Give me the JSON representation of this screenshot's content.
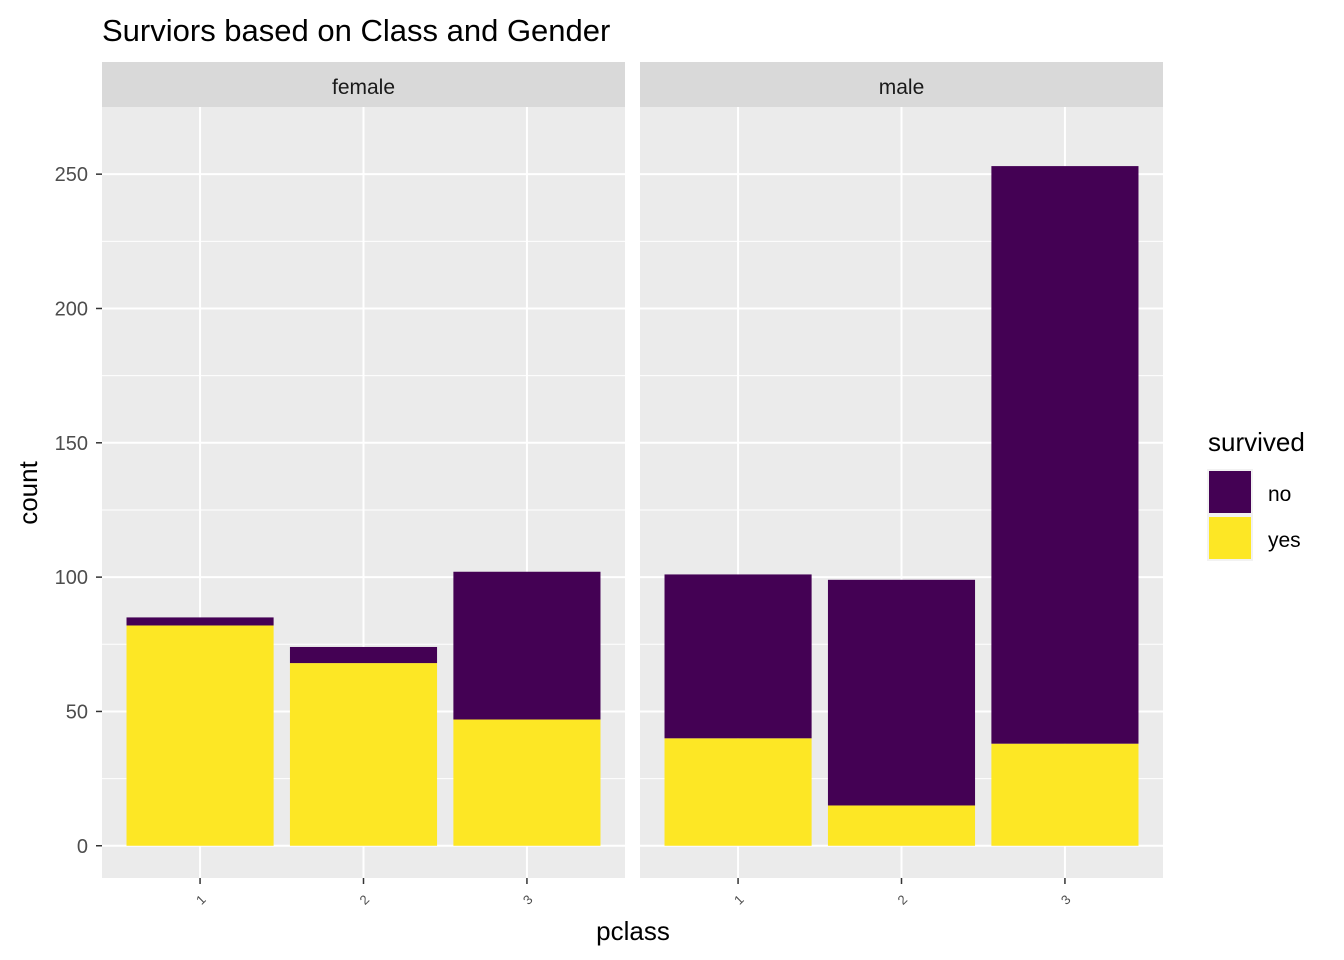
{
  "chart_data": {
    "type": "bar",
    "stacked": true,
    "title": "Surviors based on Class and Gender",
    "xlabel": "pclass",
    "ylabel": "count",
    "ylim": [
      -12,
      275
    ],
    "yticks": [
      0,
      50,
      100,
      150,
      200,
      250
    ],
    "categories": [
      "1",
      "2",
      "3"
    ],
    "facets": [
      {
        "name": "female",
        "series": [
          {
            "name": "no",
            "values": [
              3,
              6,
              55
            ]
          },
          {
            "name": "yes",
            "values": [
              82,
              68,
              47
            ]
          }
        ]
      },
      {
        "name": "male",
        "series": [
          {
            "name": "no",
            "values": [
              61,
              84,
              215
            ]
          },
          {
            "name": "yes",
            "values": [
              40,
              15,
              38
            ]
          }
        ]
      }
    ],
    "legend": {
      "title": "survived",
      "position": "right",
      "items": [
        {
          "label": "no",
          "color": "#440154"
        },
        {
          "label": "yes",
          "color": "#FDE725"
        }
      ]
    },
    "grid": true,
    "colors": {
      "no": "#440154",
      "yes": "#FDE725",
      "panel": "#EBEBEB",
      "strip": "#D9D9D9",
      "grid": "#FFFFFF"
    }
  }
}
